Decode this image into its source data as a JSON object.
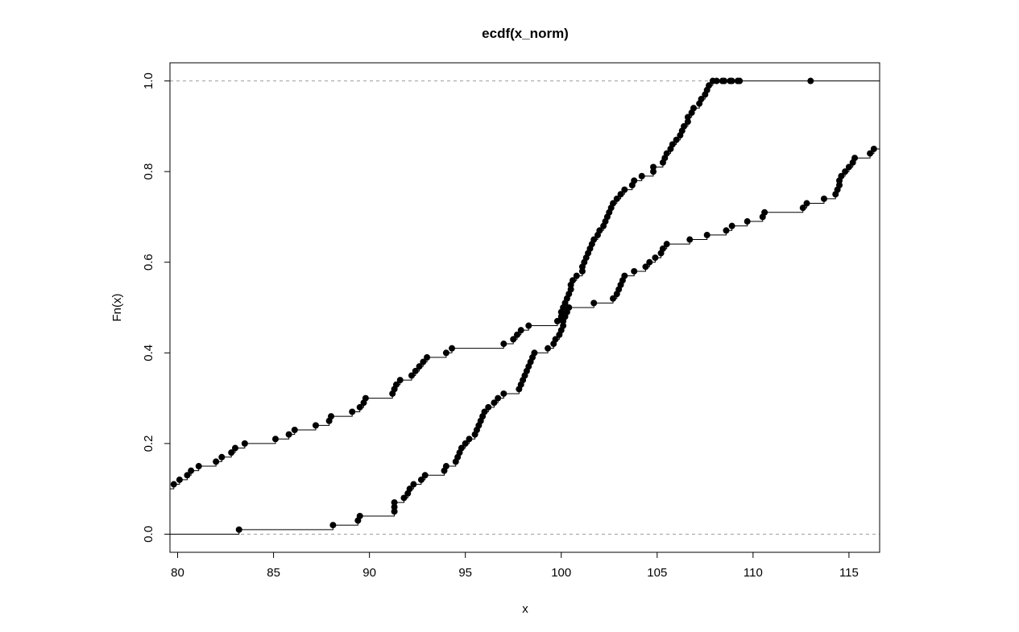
{
  "chart_data": {
    "type": "step",
    "title": "ecdf(x_norm)",
    "xlabel": "x",
    "ylabel": "Fn(x)",
    "xlim": [
      79.6,
      116.6
    ],
    "ylim": [
      -0.04,
      1.04
    ],
    "x_ticks": [
      80,
      85,
      90,
      95,
      100,
      105,
      110,
      115
    ],
    "x_tick_labels": [
      "80",
      "85",
      "90",
      "95",
      "100",
      "105",
      "110",
      "115"
    ],
    "y_ticks": [
      0.0,
      0.2,
      0.4,
      0.6,
      0.8,
      1.0
    ],
    "y_tick_labels": [
      "0.0",
      "0.2",
      "0.4",
      "0.6",
      "0.8",
      "1.0"
    ],
    "reference_lines": [
      0,
      1
    ],
    "grid": false,
    "series": [
      {
        "x": [
          83.2,
          88.1,
          89.4,
          89.5,
          91.3,
          91.3,
          91.3,
          91.8,
          92.0,
          92.1,
          92.3,
          92.7,
          92.9,
          93.9,
          94.0,
          94.5,
          94.6,
          94.7,
          94.8,
          95.0,
          95.2,
          95.5,
          95.6,
          95.7,
          95.8,
          95.9,
          96.0,
          96.2,
          96.5,
          96.7,
          97.0,
          97.8,
          97.9,
          98.0,
          98.1,
          98.2,
          98.3,
          98.4,
          98.5,
          98.6,
          99.3,
          99.6,
          99.7,
          99.9,
          100.0,
          100.1,
          100.1,
          100.2,
          100.3,
          100.4,
          101.7,
          102.7,
          102.9,
          103.0,
          103.1,
          103.2,
          103.3,
          103.8,
          104.4,
          104.6,
          104.9,
          105.2,
          105.3,
          105.5,
          106.7,
          107.6,
          108.6,
          108.9,
          109.7,
          110.5,
          110.6,
          112.6,
          112.8,
          113.7,
          114.3,
          114.4,
          114.5,
          114.5,
          114.6,
          114.8,
          115.0,
          115.2,
          115.3,
          116.1,
          116.3
        ],
        "y": [
          0.01,
          0.02,
          0.03,
          0.04,
          0.05,
          0.06,
          0.07,
          0.08,
          0.09,
          0.1,
          0.11,
          0.12,
          0.13,
          0.14,
          0.15,
          0.16,
          0.17,
          0.18,
          0.19,
          0.2,
          0.21,
          0.22,
          0.23,
          0.24,
          0.25,
          0.26,
          0.27,
          0.28,
          0.29,
          0.3,
          0.31,
          0.32,
          0.33,
          0.34,
          0.35,
          0.36,
          0.37,
          0.38,
          0.39,
          0.4,
          0.41,
          0.42,
          0.43,
          0.44,
          0.45,
          0.46,
          0.47,
          0.48,
          0.49,
          0.5,
          0.51,
          0.52,
          0.53,
          0.54,
          0.55,
          0.56,
          0.57,
          0.58,
          0.59,
          0.6,
          0.61,
          0.62,
          0.63,
          0.64,
          0.65,
          0.66,
          0.67,
          0.68,
          0.69,
          0.7,
          0.71,
          0.72,
          0.73,
          0.74,
          0.75,
          0.76,
          0.77,
          0.78,
          0.79,
          0.8,
          0.81,
          0.82,
          0.83,
          0.84,
          0.85
        ]
      },
      {
        "x": [
          79.8,
          80.1,
          80.5,
          80.7,
          81.1,
          82.0,
          82.3,
          82.8,
          83.0,
          83.5,
          85.1,
          85.8,
          86.1,
          87.2,
          87.9,
          88.0,
          89.1,
          89.5,
          89.7,
          89.8,
          91.2,
          91.3,
          91.4,
          91.6,
          92.2,
          92.4,
          92.6,
          92.8,
          93.0,
          94.0,
          94.3,
          97.0,
          97.5,
          97.7,
          97.9,
          98.3,
          99.8,
          100.0,
          100.0,
          100.1,
          100.2,
          100.3,
          100.4,
          100.5,
          100.5,
          100.6,
          100.8,
          101.1,
          101.1,
          101.2,
          101.3,
          101.4,
          101.5,
          101.6,
          101.7,
          101.9,
          102.0,
          102.2,
          102.3,
          102.4,
          102.5,
          102.6,
          102.7,
          102.9,
          103.1,
          103.3,
          103.7,
          103.8,
          104.2,
          104.8,
          104.8,
          105.3,
          105.4,
          105.5,
          105.7,
          105.8,
          106.0,
          106.2,
          106.3,
          106.4,
          106.6,
          106.6,
          106.8,
          106.9,
          107.2,
          107.3,
          107.5,
          107.6,
          107.7,
          107.9,
          108.1,
          108.4,
          108.5,
          108.8,
          108.9,
          109.2,
          109.3,
          113.0
        ],
        "y": [
          0.11,
          0.12,
          0.13,
          0.14,
          0.15,
          0.16,
          0.17,
          0.18,
          0.19,
          0.2,
          0.21,
          0.22,
          0.23,
          0.24,
          0.25,
          0.26,
          0.27,
          0.28,
          0.29,
          0.3,
          0.31,
          0.32,
          0.33,
          0.34,
          0.35,
          0.36,
          0.37,
          0.38,
          0.39,
          0.4,
          0.41,
          0.42,
          0.43,
          0.44,
          0.45,
          0.46,
          0.47,
          0.48,
          0.49,
          0.5,
          0.51,
          0.52,
          0.53,
          0.54,
          0.55,
          0.56,
          0.57,
          0.58,
          0.59,
          0.6,
          0.61,
          0.62,
          0.63,
          0.64,
          0.65,
          0.66,
          0.67,
          0.68,
          0.69,
          0.7,
          0.71,
          0.72,
          0.73,
          0.74,
          0.75,
          0.76,
          0.77,
          0.78,
          0.79,
          0.8,
          0.81,
          0.82,
          0.83,
          0.84,
          0.85,
          0.86,
          0.87,
          0.88,
          0.89,
          0.9,
          0.91,
          0.92,
          0.93,
          0.94,
          0.95,
          0.96,
          0.97,
          0.98,
          0.99,
          1.0,
          1.0,
          1.0,
          1.0,
          1.0,
          1.0,
          1.0,
          1.0,
          1.0
        ],
        "start_y": 0.1
      }
    ],
    "colors": {
      "points": "#000000",
      "steps": "#000000",
      "reference": "#9e9e9e",
      "frame": "#000000"
    }
  }
}
